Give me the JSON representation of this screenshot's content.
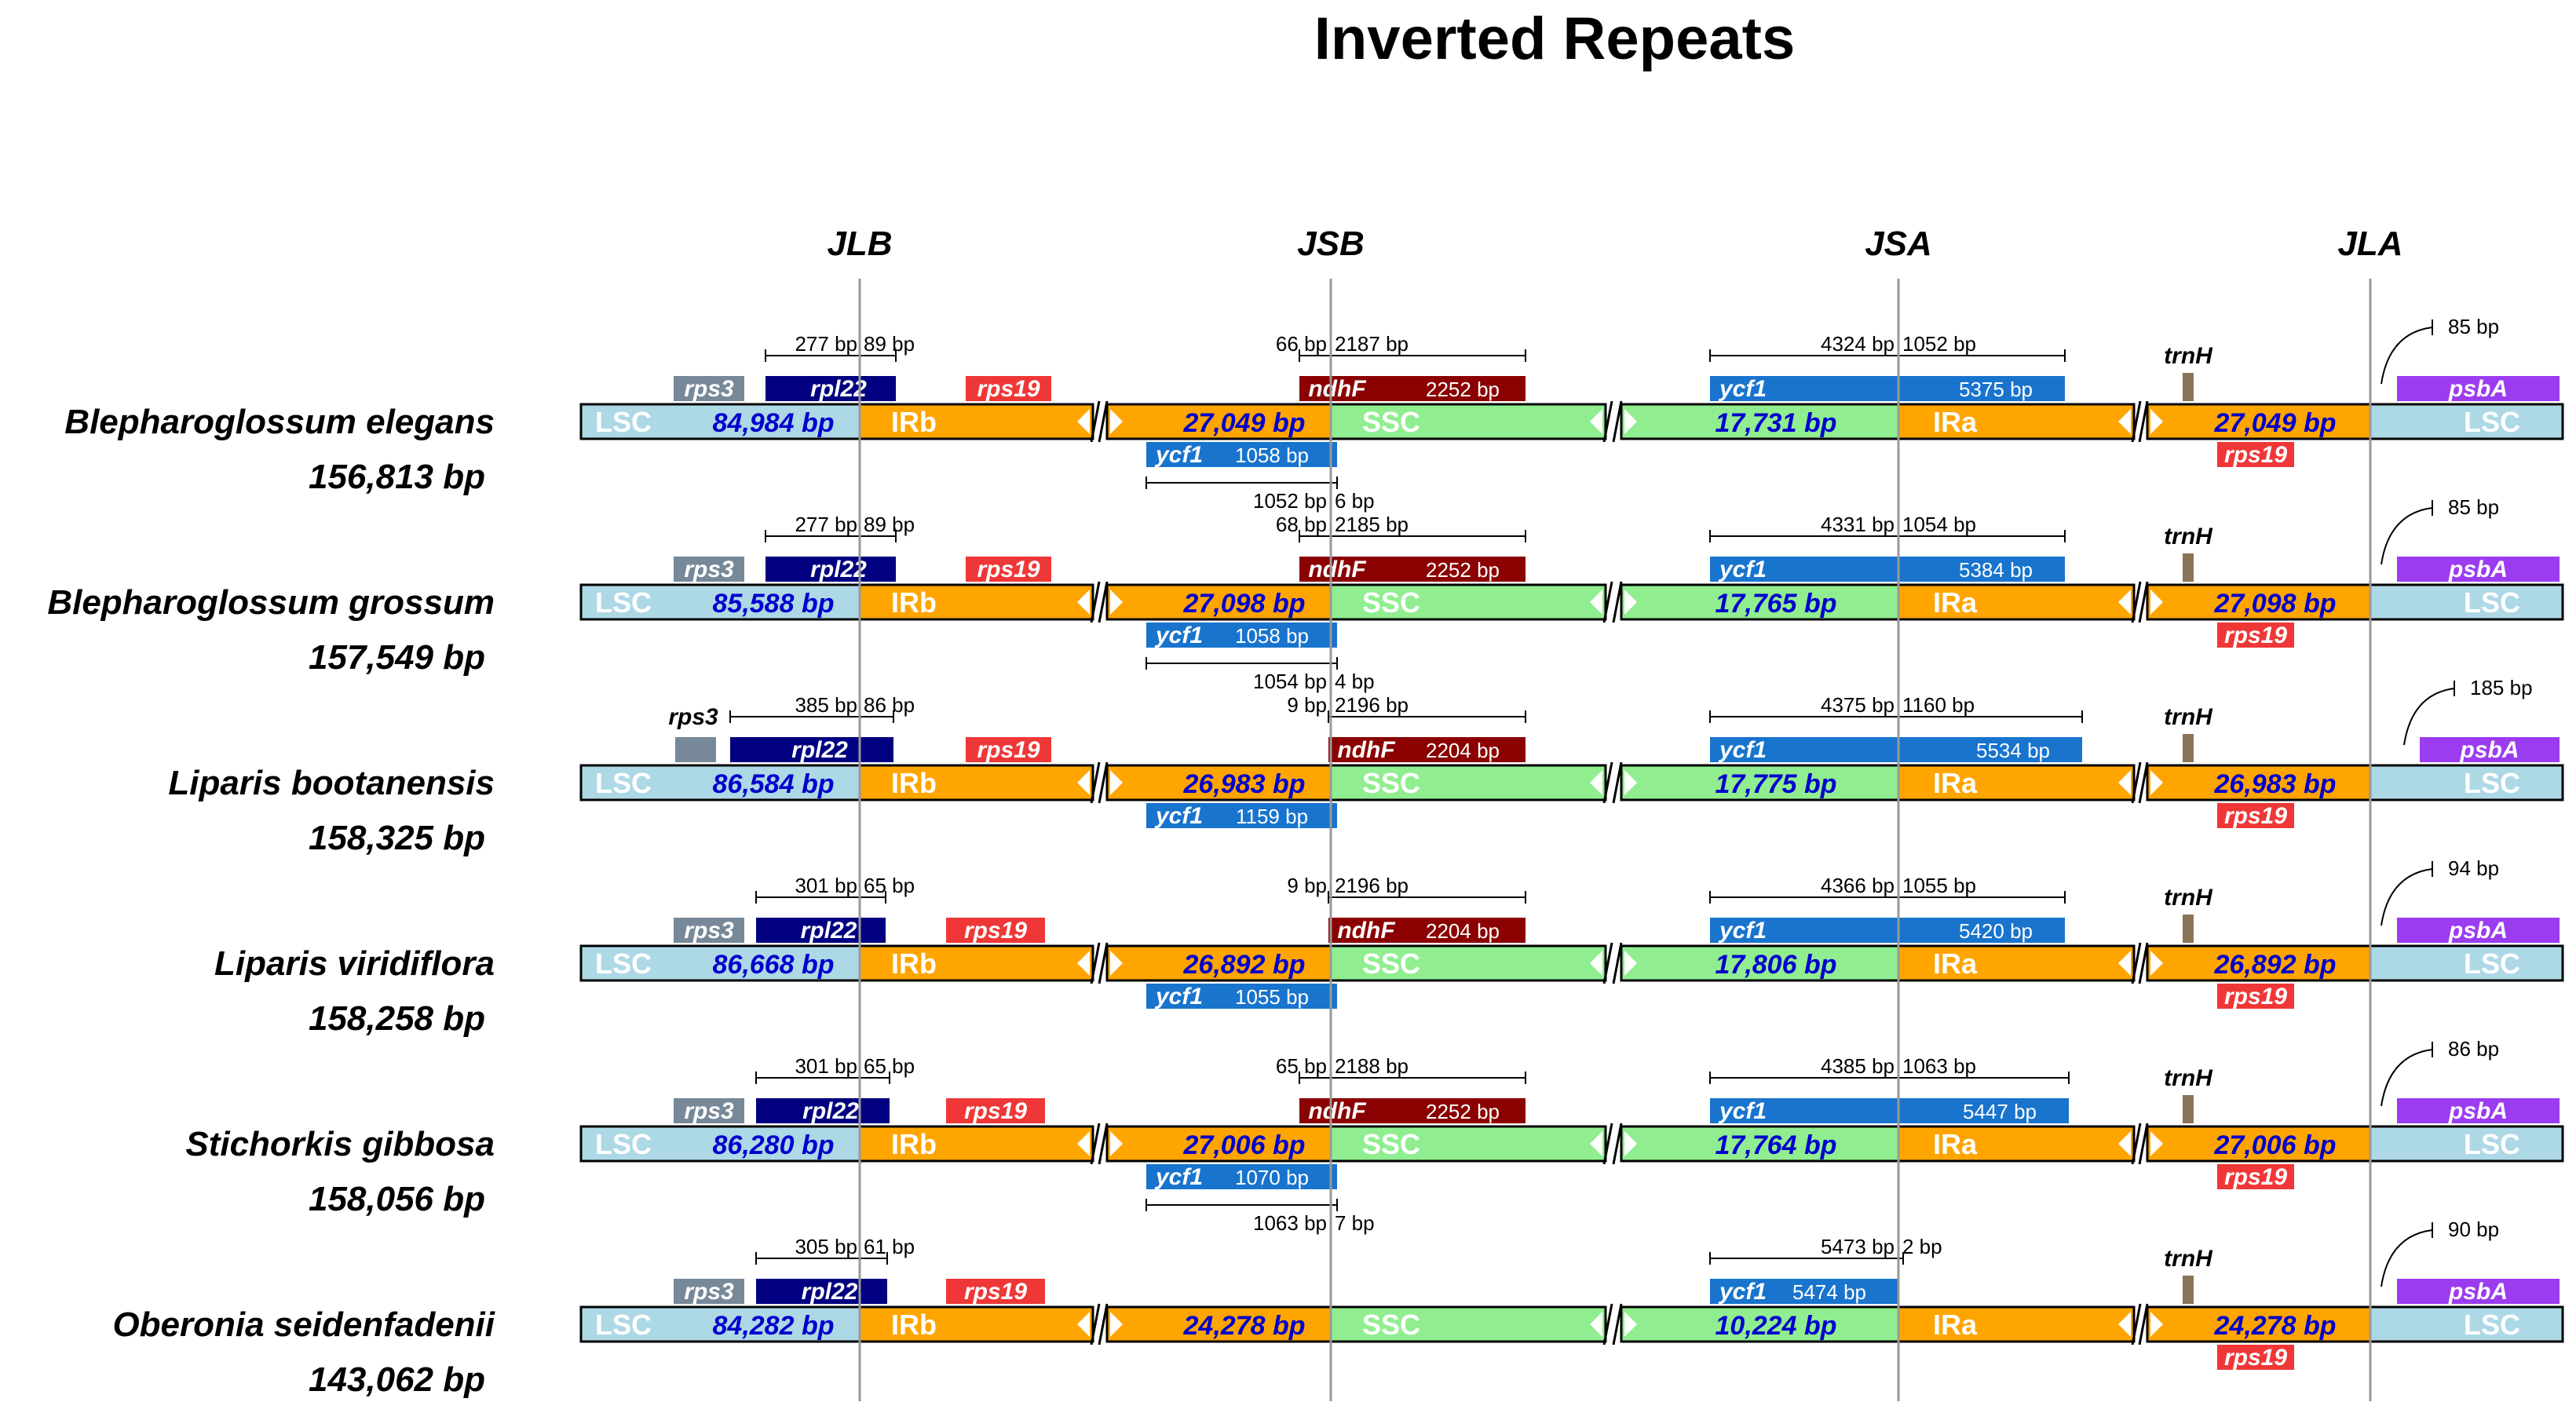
{
  "title": "Inverted Repeats",
  "junctions": [
    "JLB",
    "JSB",
    "JSA",
    "JLA"
  ],
  "colors": {
    "lsc": "#add8e6",
    "ir": "#ffa500",
    "ssc": "#90ee90",
    "rps3": "#778899",
    "rpl22": "#000080",
    "rps19": "#ef3737",
    "ndhF": "#8b0000",
    "ycf1": "#1874cd",
    "trnH": "#8b7355",
    "psbA": "#9b3cf0",
    "lenText": "#0000cd"
  },
  "species": [
    {
      "name": "Blepharoglossum elegans",
      "size": "156,813 bp",
      "seg": {
        "lsc": "84,984 bp",
        "irb": "27,049 bp",
        "ssc": "17,731 bp",
        "ira": "27,049 bp"
      },
      "rps3": "rps3",
      "rpl22": "rpl22",
      "rpl22Left": "277 bp",
      "rpl22Right": "89 bp",
      "rps19": "rps19",
      "rps19b": "rps19",
      "ndhF": "ndhF",
      "ndhFLen": "2252 bp",
      "ndhFLeft": "66 bp",
      "ndhFRight": "2187 bp",
      "ycf1a": "ycf1",
      "ycf1aLen": "5375 bp",
      "ycf1aLeft": "4324 bp",
      "ycf1aRight": "1052 bp",
      "ycf1b": "ycf1",
      "ycf1bLen": "1058 bp",
      "ycf1bLeft": "1052 bp",
      "ycf1bRight": "6 bp",
      "trnH": "trnH",
      "psbA": "psbA",
      "psbADist": "85 bp"
    },
    {
      "name": "Blepharoglossum grossum",
      "size": "157,549 bp",
      "seg": {
        "lsc": "85,588 bp",
        "irb": "27,098 bp",
        "ssc": "17,765 bp",
        "ira": "27,098 bp"
      },
      "rps3": "rps3",
      "rpl22": "rpl22",
      "rpl22Left": "277 bp",
      "rpl22Right": "89 bp",
      "rps19": "rps19",
      "rps19b": "rps19",
      "ndhF": "ndhF",
      "ndhFLen": "2252 bp",
      "ndhFLeft": "68 bp",
      "ndhFRight": "2185 bp",
      "ycf1a": "ycf1",
      "ycf1aLen": "5384 bp",
      "ycf1aLeft": "4331 bp",
      "ycf1aRight": "1054 bp",
      "ycf1b": "ycf1",
      "ycf1bLen": "1058 bp",
      "ycf1bLeft": "1054 bp",
      "ycf1bRight": "4 bp",
      "trnH": "trnH",
      "psbA": "psbA",
      "psbADist": "85 bp"
    },
    {
      "name": "Liparis bootanensis",
      "size": "158,325 bp",
      "seg": {
        "lsc": "86,584 bp",
        "irb": "26,983 bp",
        "ssc": "17,775 bp",
        "ira": "26,983 bp"
      },
      "rps3": "rps3",
      "rpl22": "rpl22",
      "rpl22Left": "385 bp",
      "rpl22Right": "86 bp",
      "rps19": "rps19",
      "rps19b": "rps19",
      "ndhF": "ndhF",
      "ndhFLen": "2204 bp",
      "ndhFLeft": "9 bp",
      "ndhFRight": "2196 bp",
      "ycf1a": "ycf1",
      "ycf1aLen": "5534 bp",
      "ycf1aLeft": "4375 bp",
      "ycf1aRight": "1160 bp",
      "ycf1b": "ycf1",
      "ycf1bLen": "1159 bp",
      "trnH": "trnH",
      "psbA": "psbA",
      "psbADist": "185 bp"
    },
    {
      "name": "Liparis viridiflora",
      "size": "158,258 bp",
      "seg": {
        "lsc": "86,668 bp",
        "irb": "26,892 bp",
        "ssc": "17,806 bp",
        "ira": "26,892 bp"
      },
      "rps3": "rps3",
      "rpl22": "rpl22",
      "rpl22Left": "301 bp",
      "rpl22Right": "65 bp",
      "rps19": "rps19",
      "rps19b": "rps19",
      "ndhF": "ndhF",
      "ndhFLen": "2204 bp",
      "ndhFLeft": "9 bp",
      "ndhFRight": "2196 bp",
      "ycf1a": "ycf1",
      "ycf1aLen": "5420 bp",
      "ycf1aLeft": "4366 bp",
      "ycf1aRight": "1055 bp",
      "ycf1b": "ycf1",
      "ycf1bLen": "1055 bp",
      "trnH": "trnH",
      "psbA": "psbA",
      "psbADist": "94 bp"
    },
    {
      "name": "Stichorkis gibbosa",
      "size": "158,056 bp",
      "seg": {
        "lsc": "86,280 bp",
        "irb": "27,006 bp",
        "ssc": "17,764 bp",
        "ira": "27,006 bp"
      },
      "rps3": "rps3",
      "rpl22": "rpl22",
      "rpl22Left": "301 bp",
      "rpl22Right": "65 bp",
      "rps19": "rps19",
      "rps19b": "rps19",
      "ndhF": "ndhF",
      "ndhFLen": "2252 bp",
      "ndhFLeft": "65 bp",
      "ndhFRight": "2188 bp",
      "ycf1a": "ycf1",
      "ycf1aLen": "5447 bp",
      "ycf1aLeft": "4385 bp",
      "ycf1aRight": "1063 bp",
      "ycf1b": "ycf1",
      "ycf1bLen": "1070 bp",
      "ycf1bLeft": "1063 bp",
      "ycf1bRight": "7 bp",
      "trnH": "trnH",
      "psbA": "psbA",
      "psbADist": "86 bp"
    },
    {
      "name": "Oberonia seidenfadenii",
      "size": "143,062 bp",
      "seg": {
        "lsc": "84,282 bp",
        "irb": "24,278 bp",
        "ssc": "10,224 bp",
        "ira": "24,278 bp"
      },
      "rps3": "rps3",
      "rpl22": "rpl22",
      "rpl22Left": "305 bp",
      "rpl22Right": "61 bp",
      "rps19": "rps19",
      "rps19b": "rps19",
      "ycf1a": "ycf1",
      "ycf1aLen": "5474 bp",
      "ycf1aLeft": "5473 bp",
      "ycf1aRight": "2 bp",
      "trnH": "trnH",
      "psbA": "psbA",
      "psbADist": "90 bp"
    }
  ],
  "segLabels": {
    "lsc": "LSC",
    "irb": "IRb",
    "ssc": "SSC",
    "ira": "IRa"
  }
}
